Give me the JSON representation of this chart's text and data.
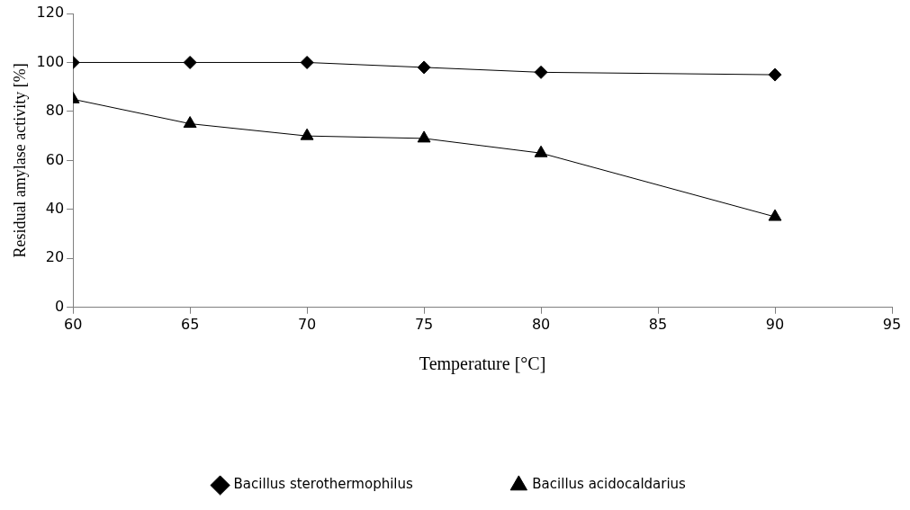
{
  "chart_data": {
    "type": "line",
    "xlabel": "Temperature [°C]",
    "ylabel": "Residual amylase activity [%]",
    "x": [
      60,
      65,
      70,
      75,
      80,
      90
    ],
    "series": [
      {
        "name": "Bacillus sterothermophilus",
        "color": "#000000",
        "marker": "diamond",
        "values": [
          100,
          100,
          100,
          98,
          96,
          95
        ]
      },
      {
        "name": "Bacillus acidocaldarius",
        "color": "#000000",
        "marker": "triangle",
        "values": [
          85,
          75,
          70,
          69,
          63,
          37
        ]
      }
    ],
    "xlim": [
      60,
      95
    ],
    "xticks": [
      60,
      65,
      70,
      75,
      80,
      85,
      90,
      95
    ],
    "ylim": [
      0,
      120
    ],
    "yticks": [
      0,
      20,
      40,
      60,
      80,
      100,
      120
    ],
    "grid": false,
    "legend": "bottom",
    "line_style": "solid"
  }
}
